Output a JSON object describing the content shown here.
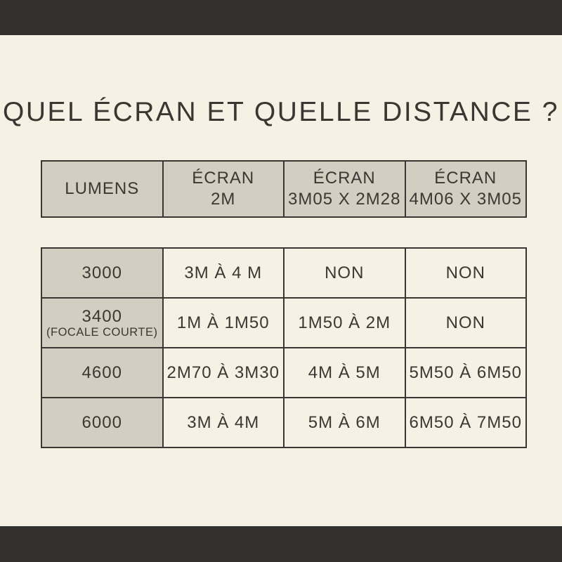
{
  "title": "QUEL ÉCRAN ET QUELLE DISTANCE ?",
  "colors": {
    "bar": "#333030",
    "background": "#f5f1e5",
    "cell_beige": "#d2cec1",
    "border": "#3a3633",
    "text": "#3b3733"
  },
  "header_row": {
    "lumens": "LUMENS",
    "col1": {
      "line1": "ÉCRAN",
      "line2": "2M"
    },
    "col2": {
      "line1": "ÉCRAN",
      "line2": "3M05 X 2M28"
    },
    "col3": {
      "line1": "ÉCRAN",
      "line2": "4M06 X 3M05"
    }
  },
  "rows": [
    {
      "lumens": "3000",
      "note": "",
      "ecran_2m": "3M À 4 M",
      "ecran_3m05": "NON",
      "ecran_4m06": "NON"
    },
    {
      "lumens": "3400",
      "note": "(FOCALE COURTE)",
      "ecran_2m": "1M À 1M50",
      "ecran_3m05": "1M50 À 2M",
      "ecran_4m06": "NON"
    },
    {
      "lumens": "4600",
      "note": "",
      "ecran_2m": "2M70 À 3M30",
      "ecran_3m05": "4M À 5M",
      "ecran_4m06": "5M50 À 6M50"
    },
    {
      "lumens": "6000",
      "note": "",
      "ecran_2m": "3M À 4M",
      "ecran_3m05": "5M À 6M",
      "ecran_4m06": "6M50 À 7M50"
    }
  ],
  "chart_data": {
    "type": "table",
    "title": "QUEL ÉCRAN ET QUELLE DISTANCE ?",
    "columns": [
      "LUMENS",
      "ÉCRAN 2M",
      "ÉCRAN 3M05 X 2M28",
      "ÉCRAN 4M06 X 3M05"
    ],
    "rows": [
      [
        "3000",
        "3M À 4 M",
        "NON",
        "NON"
      ],
      [
        "3400 (FOCALE COURTE)",
        "1M À 1M50",
        "1M50 À 2M",
        "NON"
      ],
      [
        "4600",
        "2M70 À 3M30",
        "4M À 5M",
        "5M50 À 6M50"
      ],
      [
        "6000",
        "3M À 4M",
        "5M À 6M",
        "6M50 À 7M50"
      ]
    ]
  }
}
